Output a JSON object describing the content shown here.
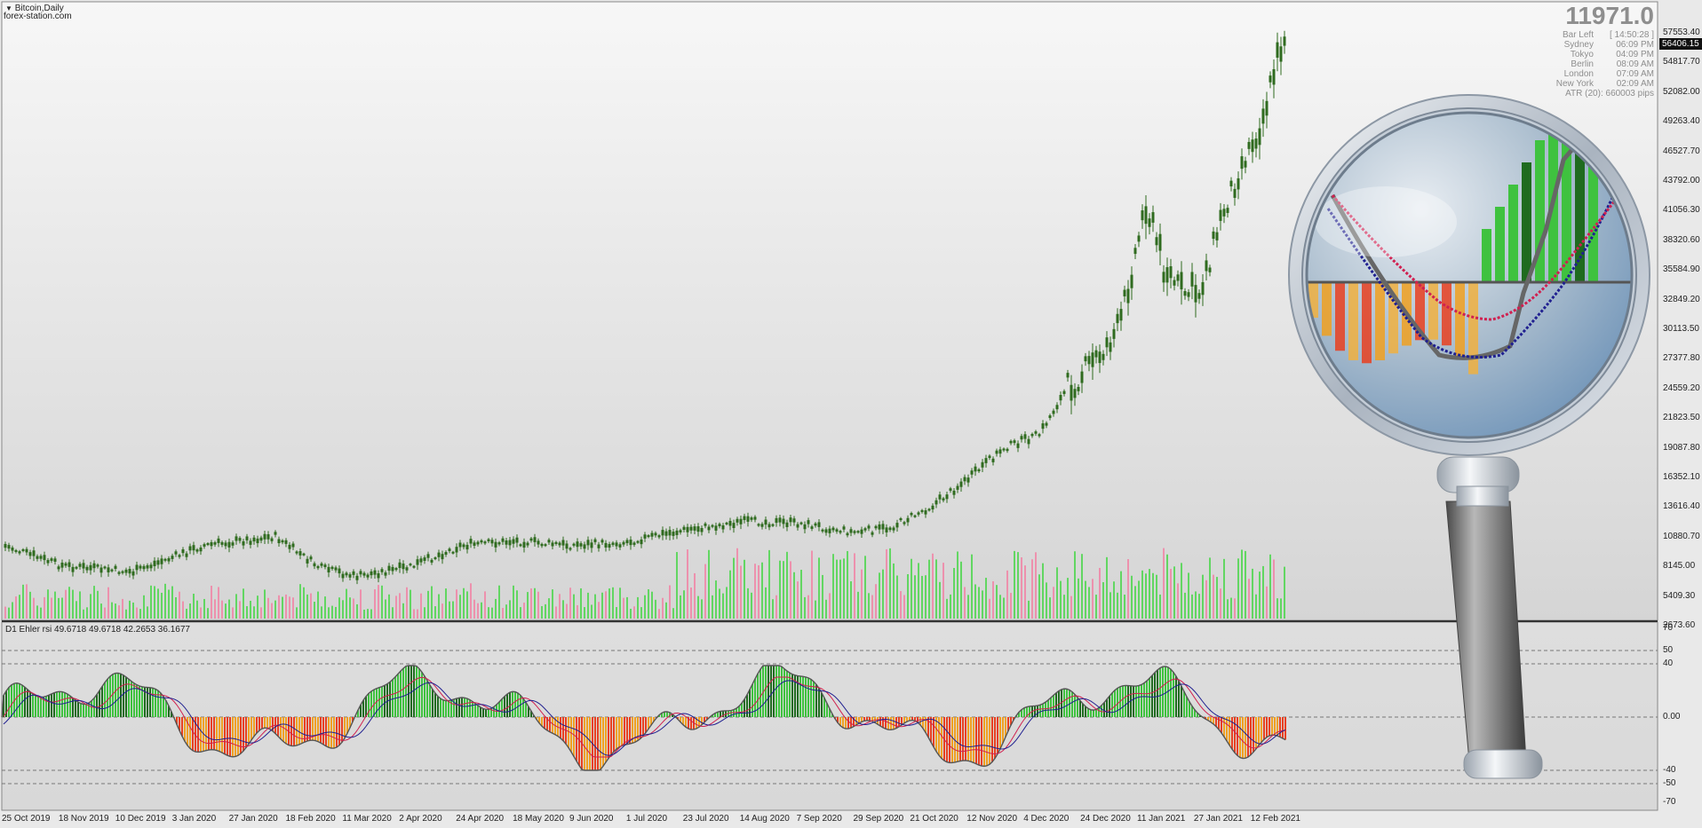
{
  "window": {
    "title": "Bitcoin,Daily",
    "subtitle": "forex-station.com"
  },
  "info_panel": {
    "big_value": "11971.0",
    "rows": [
      {
        "label": "Bar Left",
        "value": "[ 14:50:28 ]"
      },
      {
        "label": "Sydney",
        "value": "06:09 PM"
      },
      {
        "label": "Tokyo",
        "value": "04:09 PM"
      },
      {
        "label": "Berlin",
        "value": "08:09 AM"
      },
      {
        "label": "London",
        "value": "07:09 AM"
      },
      {
        "label": "New York",
        "value": "02:09 AM"
      }
    ],
    "atr": "ATR (20): 660003 pips"
  },
  "price_axis": {
    "current_price": "56406.15",
    "labels": [
      "57553.40",
      "54817.70",
      "52082.00",
      "49263.40",
      "46527.70",
      "43792.00",
      "41056.30",
      "38320.60",
      "35584.90",
      "32849.20",
      "30113.50",
      "27377.80",
      "24559.20",
      "21823.50",
      "19087.80",
      "16352.10",
      "13616.40",
      "10880.70",
      "8145.00",
      "5409.30",
      "2673.60"
    ]
  },
  "indicator": {
    "label": "D1 Ehler rsi 49.6718 49.6718 42.2653 36.1677",
    "axis_labels": [
      "70",
      "50",
      "40",
      "0.00",
      "-40",
      "-50",
      "-70"
    ]
  },
  "time_axis": {
    "labels": [
      "25 Oct 2019",
      "18 Nov 2019",
      "10 Dec 2019",
      "3 Jan 2020",
      "27 Jan 2020",
      "18 Feb 2020",
      "11 Mar 2020",
      "2 Apr 2020",
      "24 Apr 2020",
      "18 May 2020",
      "9 Jun 2020",
      "1 Jul 2020",
      "23 Jul 2020",
      "14 Aug 2020",
      "7 Sep 2020",
      "29 Sep 2020",
      "21 Oct 2020",
      "12 Nov 2020",
      "4 Dec 2020",
      "24 Dec 2020",
      "11 Jan 2021",
      "27 Jan 2021",
      "12 Feb 2021"
    ]
  },
  "colors": {
    "candle": "#2f6b1f",
    "vol_up": "#55d655",
    "vol_down": "#f08aa8",
    "hist_pos": "#3fc23f",
    "hist_pos_dark": "#1f6b1f",
    "hist_neg": "#f0a020",
    "hist_neg_red": "#e84020",
    "line_a": "#d02050",
    "line_b": "#202090"
  },
  "icons": {
    "magnifier": "magnifier-icon",
    "menu": "triangle-down-icon"
  }
}
